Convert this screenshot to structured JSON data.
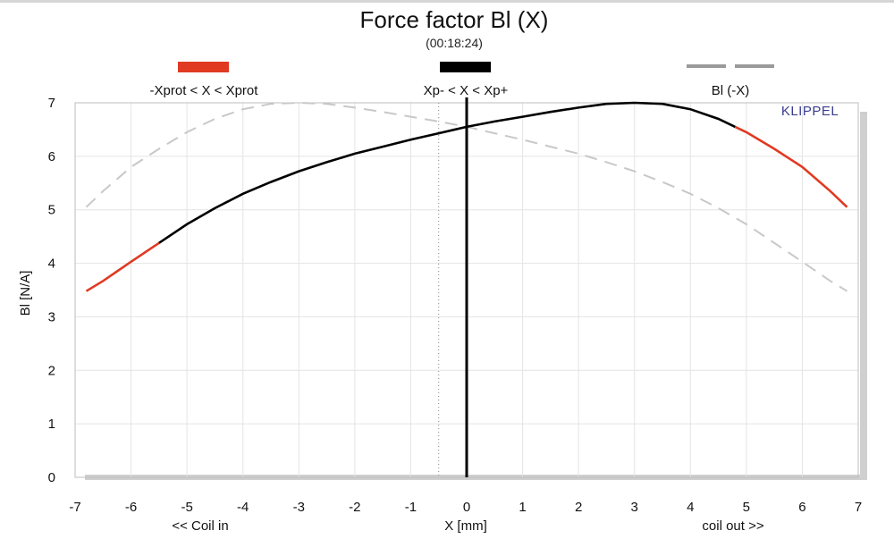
{
  "chart_data": {
    "type": "line",
    "title": "Force factor Bl (X)",
    "subtitle": "(00:18:24)",
    "xlabel": "X [mm]",
    "ylabel": "Bl [N/A]",
    "x_left_note": "<< Coil in",
    "x_right_note": "coil out >>",
    "brand": "KLIPPEL",
    "xlim": [
      -7,
      7
    ],
    "ylim": [
      0,
      7
    ],
    "xticks": [
      -7,
      -6,
      -5,
      -4,
      -3,
      -2,
      -1,
      0,
      1,
      2,
      3,
      4,
      5,
      6,
      7
    ],
    "yticks": [
      0,
      1,
      2,
      3,
      4,
      5,
      6,
      7
    ],
    "grid": true,
    "legend_position": "top",
    "legend": [
      {
        "label": "-Xprot < X < Xprot",
        "color": "#e03a22",
        "style": "solid"
      },
      {
        "label": "Xp- < X < Xp+",
        "color": "#000000",
        "style": "solid"
      },
      {
        "label": "Bl (-X)",
        "color": "#9a9a9a",
        "style": "dashed"
      }
    ],
    "x": [
      -6.8,
      -6.5,
      -6,
      -5.5,
      -5,
      -4.5,
      -4,
      -3.5,
      -3,
      -2.5,
      -2,
      -1.5,
      -1,
      -0.5,
      0,
      0.5,
      1,
      1.5,
      2,
      2.5,
      3,
      3.5,
      4,
      4.5,
      5,
      5.5,
      6,
      6.5,
      6.8
    ],
    "series": [
      {
        "name": "Bl (X)",
        "values": [
          3.48,
          3.67,
          4.03,
          4.38,
          4.73,
          5.03,
          5.3,
          5.52,
          5.72,
          5.89,
          6.05,
          6.18,
          6.31,
          6.43,
          6.55,
          6.65,
          6.74,
          6.83,
          6.91,
          6.98,
          7.0,
          6.98,
          6.88,
          6.7,
          6.45,
          6.14,
          5.8,
          5.35,
          5.05
        ]
      },
      {
        "name": "Bl (-X)",
        "values": [
          5.05,
          5.35,
          5.8,
          6.14,
          6.45,
          6.7,
          6.88,
          6.98,
          7.0,
          6.98,
          6.91,
          6.83,
          6.74,
          6.65,
          6.55,
          6.43,
          6.31,
          6.18,
          6.05,
          5.89,
          5.72,
          5.52,
          5.3,
          5.03,
          4.73,
          4.38,
          4.03,
          3.67,
          3.48
        ]
      }
    ],
    "red_region": {
      "x_min": -5.5,
      "x_max": 4.8
    },
    "dotted_vertical_x": -0.5,
    "marker_x": 0,
    "colors": {
      "red": "#e03a22",
      "black": "#000000",
      "dashed": "#c8c8c8",
      "grid": "#e4e4e4",
      "shadow": "#cfcfcf"
    }
  }
}
